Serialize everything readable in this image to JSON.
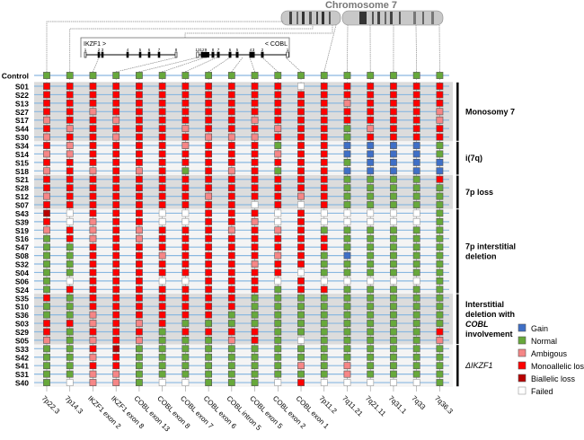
{
  "chart_data": {
    "type": "heatmap",
    "title": "Chromosome 7",
    "gene_labels": {
      "ikzf1": "IKZF1 >",
      "cobl": "< COBL"
    },
    "ikzf1_exons": [
      "1",
      "2",
      "3",
      "4",
      "5",
      "6",
      "7",
      "8"
    ],
    "cobl_exons": [
      "13",
      "12",
      "9",
      "8",
      "7",
      "6",
      "5",
      "4",
      "3",
      "2",
      "1"
    ],
    "columns": [
      "7p22.3",
      "7p14.3",
      "IKZF1 exon 2",
      "IKZF1 exon 8",
      "COBL exon 13",
      "COBL exon 8",
      "COBL exon 7",
      "COBL exon 6",
      "COBL intron 5",
      "COBL exon 5",
      "COBL exon 2",
      "COBL exon 1",
      "7p11.2",
      "7q11.21",
      "7q21.11",
      "7q31.1",
      "7q33",
      "7q36.3"
    ],
    "legend": [
      {
        "code": "B",
        "label": "Gain",
        "color": "#3f6fc6"
      },
      {
        "code": "G",
        "label": "Normal",
        "color": "#67a83b"
      },
      {
        "code": "A",
        "label": "Ambigous",
        "color": "#f58686"
      },
      {
        "code": "R",
        "label": "Monoallelic loss",
        "color": "#fe0000"
      },
      {
        "code": "D",
        "label": "Biallelic loss",
        "color": "#b80000"
      },
      {
        "code": "W",
        "label": "Failed",
        "color": "#ffffff"
      }
    ],
    "control": {
      "name": "Control",
      "calls": "GGGGGGGGGGGGGGGGGG"
    },
    "groups": [
      {
        "label": [
          "Monosomy 7"
        ],
        "shaded": true,
        "rows": [
          {
            "name": "S01",
            "calls": "RRRRRRRRRRRWRRRRRR"
          },
          {
            "name": "S22",
            "calls": "RRRRRRRRRRRRRRRRRR"
          },
          {
            "name": "S13",
            "calls": "RRRRRRRRRRRRRARRRR"
          },
          {
            "name": "S27",
            "calls": "RRARRRRRRRRRRRRRRA"
          },
          {
            "name": "S17",
            "calls": "ARRARRRRRARRRRRRRA"
          },
          {
            "name": "S44",
            "calls": "RARRRRARRRARRGARRR"
          },
          {
            "name": "S30",
            "calls": "ARRARRRAAARRRGRRRR"
          }
        ]
      },
      {
        "label": [
          "i(7q)"
        ],
        "shaded": false,
        "rows": [
          {
            "name": "S34",
            "calls": "RARRRRARRRGRRBBBBG"
          },
          {
            "name": "S14",
            "calls": "AARRRRRRRRARRBBBBG"
          },
          {
            "name": "S15",
            "calls": "RRRRRRRRRRRRRGBBBB"
          },
          {
            "name": "S18",
            "calls": "ARARARGRARGRRBBBBB"
          }
        ]
      },
      {
        "label": [
          "7p loss"
        ],
        "shaded": true,
        "rows": [
          {
            "name": "S21",
            "calls": "RRRRRRRRRRRRRGGGGR"
          },
          {
            "name": "S28",
            "calls": "RRRRRRRRRRRRRGGGGG"
          },
          {
            "name": "S12",
            "calls": "ARRRRRRARRRARGGGGG"
          },
          {
            "name": "S07",
            "calls": "RRRRRRRRRWRWRGGGGG"
          }
        ]
      },
      {
        "label": [
          "7p interstitial",
          "deletion"
        ],
        "shaded": false,
        "rows": [
          {
            "name": "S43",
            "calls": "DWRRRWWRRRWRWWWWWG"
          },
          {
            "name": "S39",
            "calls": "RWARRWWRRAWRWWWWWG"
          },
          {
            "name": "S19",
            "calls": "ARARARRRARARGGGGGG"
          },
          {
            "name": "S16",
            "calls": "GRARARRRRRRRRGGGGG"
          },
          {
            "name": "S47",
            "calls": "GGRRRRRRRRRRRGGGGG"
          },
          {
            "name": "S08",
            "calls": "GGRRRARRRRARGBGGGG"
          },
          {
            "name": "S32",
            "calls": "GGRRRRRRRARRGGGGGG"
          },
          {
            "name": "S04",
            "calls": "GGRRRRRRRRRWGGGGGG"
          },
          {
            "name": "S06",
            "calls": "GWRRRWWRRRWRWWWWWG"
          },
          {
            "name": "S24",
            "calls": "GRRRRRRRRRGRRGGGGG"
          }
        ]
      },
      {
        "label": [
          "Interstitial",
          "deletion with",
          "COBL",
          "involvement"
        ],
        "shaded": true,
        "rows": [
          {
            "name": "S35",
            "calls": "RGRRRRRRRGGGGGGGGG"
          },
          {
            "name": "S10",
            "calls": "GGRRRRRRRGGGGGGGGG"
          },
          {
            "name": "S36",
            "calls": "GGARRRRRGGGGGGGGGG"
          },
          {
            "name": "S03",
            "calls": "RRARARGGGGGGGGGGGG"
          },
          {
            "name": "S29",
            "calls": "RGRRRGRRRRGGGGGGGR"
          },
          {
            "name": "S05",
            "calls": "AGARAGGGARGWGGGGGA"
          }
        ]
      },
      {
        "label": [
          "ΔIKZF1"
        ],
        "shaded": false,
        "italic": true,
        "rows": [
          {
            "name": "S33",
            "calls": "GGRDGGGGGGGGGGGGGG"
          },
          {
            "name": "S42",
            "calls": "GGARGGGGGGGGGGGGGG"
          },
          {
            "name": "S41",
            "calls": "GGRRGGGGGGGAGAGGGG"
          },
          {
            "name": "S31",
            "calls": "GGAAGGGGGGGGGAGGGG"
          },
          {
            "name": "S40",
            "calls": "GWAAGWWGGGWRWWWWWG"
          }
        ]
      }
    ]
  }
}
